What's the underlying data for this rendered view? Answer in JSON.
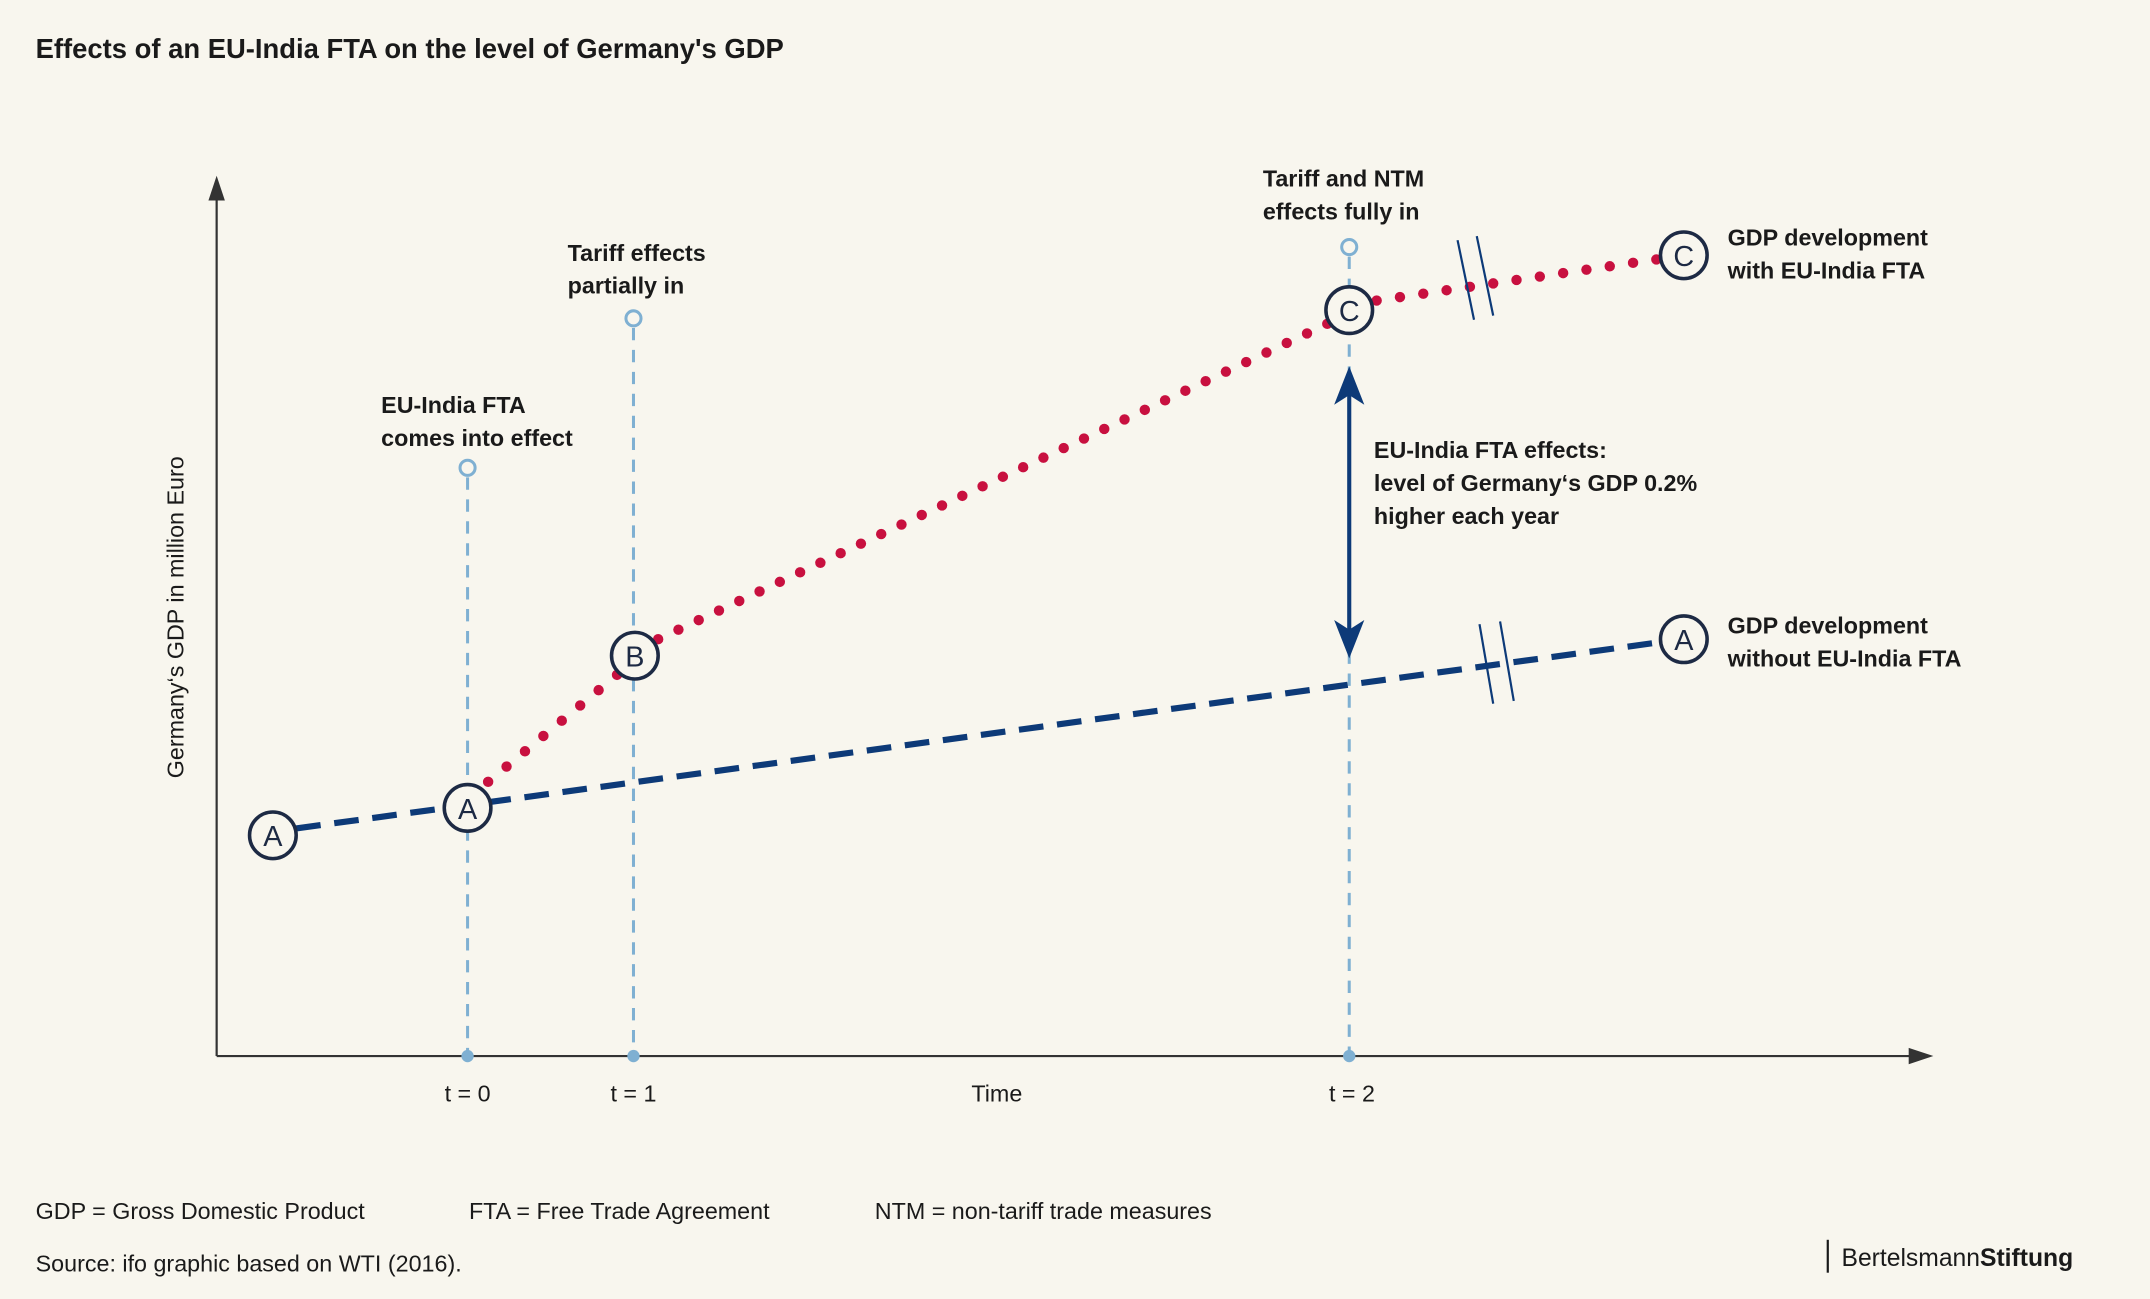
{
  "title": "Effects of an EU-India FTA on the level of Germany's GDP",
  "colors": {
    "background": "#f8f6ee",
    "with_fta": "#c8103f",
    "without_fta": "#0d3a78",
    "guide": "#7fb0d2",
    "axis": "#333333"
  },
  "chart_data": {
    "type": "line",
    "title": "Effects of an EU-India FTA on the level of Germany's GDP",
    "xlabel": "Time",
    "ylabel": "Germany‘s GDP in million  Euro",
    "x_ticks": [
      "t = 0",
      "t = 1",
      "t = 2"
    ],
    "series": [
      {
        "name": "GDP development without EU-India FTA",
        "style": "dashed",
        "points": [
          "A",
          "A",
          "A"
        ]
      },
      {
        "name": "GDP development with EU-India FTA",
        "style": "dotted",
        "points": [
          "A",
          "B",
          "C",
          "C"
        ]
      }
    ],
    "annotations": {
      "t0": [
        "EU-India FTA",
        "comes into effect"
      ],
      "t1": [
        "Tariff effects",
        "partially in"
      ],
      "t2": [
        "Tariff and NTM",
        "effects fully in"
      ],
      "effect": [
        "EU-India FTA effects:",
        "level of Germany‘s GDP 0.2%",
        "higher each year"
      ],
      "with_fta": [
        "GDP development",
        "with EU-India FTA"
      ],
      "without_fta": [
        "GDP development",
        "without EU-India FTA"
      ]
    },
    "point_labels": {
      "a": "A",
      "b": "B",
      "c": "C"
    }
  },
  "footer": {
    "abbr1": "GDP = Gross Domestic Product",
    "abbr2": "FTA = Free Trade Agreement",
    "abbr3": "NTM = non-tariff trade measures",
    "source": "Source: ifo graphic based on WTI (2016).",
    "logo_a": "Bertelsmann",
    "logo_b": "Stiftung"
  }
}
